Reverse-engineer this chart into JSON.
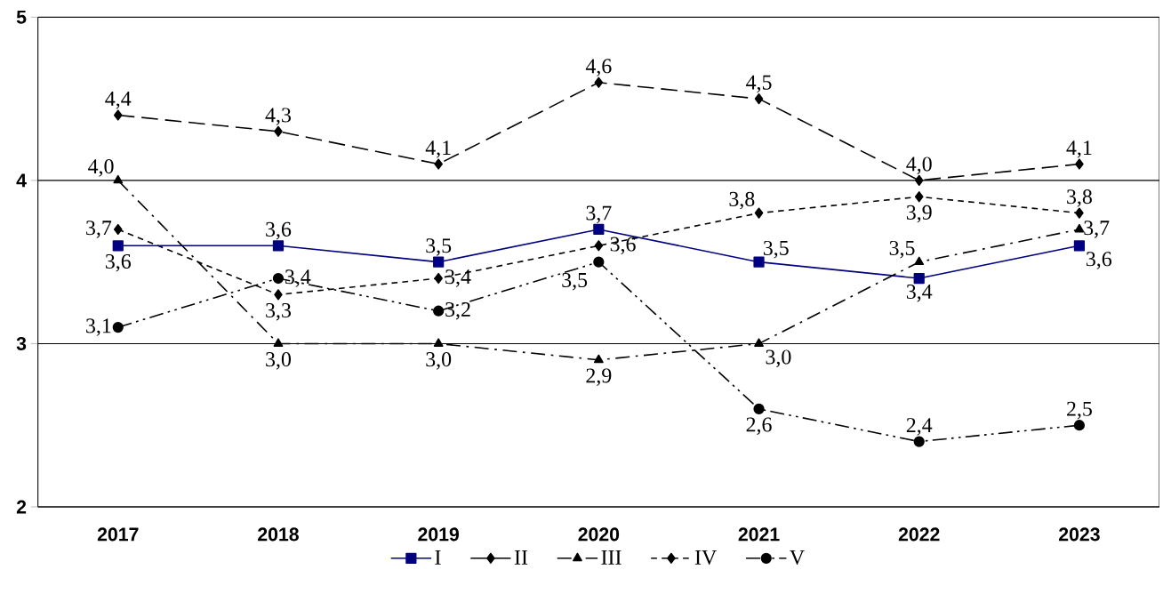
{
  "chart_data": {
    "type": "line",
    "categories": [
      "2017",
      "2018",
      "2019",
      "2020",
      "2021",
      "2022",
      "2023"
    ],
    "ylim": [
      2,
      5
    ],
    "yticks": [
      2,
      3,
      4,
      5
    ],
    "grid": "y",
    "legend": "bottom",
    "series": [
      {
        "name": "I",
        "color": "#000080",
        "marker": "square",
        "line_style": "solid",
        "values": [
          3.6,
          3.6,
          3.5,
          3.7,
          3.5,
          3.4,
          3.6
        ],
        "value_labels": [
          "3,6",
          "3,6",
          "3,5",
          "3,7",
          "3,5",
          "3,4",
          "3,6"
        ]
      },
      {
        "name": "II",
        "color": "#000000",
        "marker": "diamond",
        "line_style": "dashed",
        "values": [
          4.4,
          4.3,
          4.1,
          4.6,
          4.5,
          4.0,
          4.1
        ],
        "value_labels": [
          "4,4",
          "4,3",
          "4,1",
          "4,6",
          "4,5",
          "4,0",
          "4,1"
        ]
      },
      {
        "name": "III",
        "color": "#000000",
        "marker": "triangle",
        "line_style": "dashed",
        "values": [
          4.0,
          3.0,
          3.0,
          2.9,
          3.0,
          3.5,
          3.7
        ],
        "value_labels": [
          "4,0",
          "3,0",
          "3,0",
          "2,9",
          "3,0",
          "3,5",
          "3,7"
        ]
      },
      {
        "name": "IV",
        "color": "#000000",
        "marker": "diamond",
        "line_style": "dotted",
        "values": [
          3.7,
          3.3,
          3.4,
          3.6,
          3.8,
          3.9,
          3.8
        ],
        "value_labels": [
          "3,7",
          "3,3",
          "3,4",
          "3,6",
          "3,8",
          "3,9",
          "3,8"
        ]
      },
      {
        "name": "V",
        "color": "#000000",
        "marker": "circle",
        "line_style": "dashed",
        "values": [
          3.1,
          3.4,
          3.2,
          3.5,
          2.6,
          2.4,
          2.5
        ],
        "value_labels": [
          "3,1",
          "3,4",
          "3,2",
          "3,5",
          "2,6",
          "2,4",
          "2,5"
        ]
      }
    ]
  }
}
